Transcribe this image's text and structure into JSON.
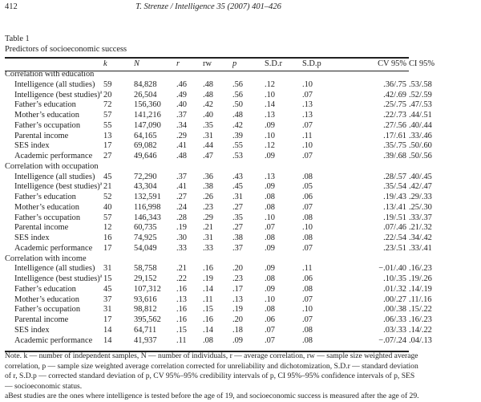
{
  "header": {
    "page_number": "412",
    "running_head": "T. Strenze / Intelligence 35 (2007) 401–426"
  },
  "table": {
    "label": "Table 1",
    "title": "Predictors of socioeconomic success",
    "columns": [
      "",
      "k",
      "N",
      "r",
      "rw",
      "p",
      "S.D.r",
      "S.D.p",
      "CV 95%",
      "CI 95%"
    ],
    "sections": [
      {
        "title": "Correlation with education",
        "rows": [
          [
            "Intelligence (all studies)",
            "59",
            "84,828",
            ".46",
            ".48",
            ".56",
            ".12",
            ".10",
            ".36/.75",
            ".53/.58"
          ],
          [
            "Intelligence (best studies)a",
            "20",
            "26,504",
            ".49",
            ".48",
            ".56",
            ".10",
            ".07",
            ".42/.69",
            ".52/.59"
          ],
          [
            "Father’s education",
            "72",
            "156,360",
            ".40",
            ".42",
            ".50",
            ".14",
            ".13",
            ".25/.75",
            ".47/.53"
          ],
          [
            "Mother’s education",
            "57",
            "141,216",
            ".37",
            ".40",
            ".48",
            ".13",
            ".13",
            ".22/.73",
            ".44/.51"
          ],
          [
            "Father’s occupation",
            "55",
            "147,090",
            ".34",
            ".35",
            ".42",
            ".09",
            ".07",
            ".27/.56",
            ".40/.44"
          ],
          [
            "Parental income",
            "13",
            "64,165",
            ".29",
            ".31",
            ".39",
            ".10",
            ".11",
            ".17/.61",
            ".33/.46"
          ],
          [
            "SES index",
            "17",
            "69,082",
            ".41",
            ".44",
            ".55",
            ".12",
            ".10",
            ".35/.75",
            ".50/.60"
          ],
          [
            "Academic performance",
            "27",
            "49,646",
            ".48",
            ".47",
            ".53",
            ".09",
            ".07",
            ".39/.68",
            ".50/.56"
          ]
        ]
      },
      {
        "title": "Correlation with occupation",
        "rows": [
          [
            "Intelligence (all studies)",
            "45",
            "72,290",
            ".37",
            ".36",
            ".43",
            ".13",
            ".08",
            ".28/.57",
            ".40/.45"
          ],
          [
            "Intelligence (best studies)a",
            "21",
            "43,304",
            ".41",
            ".38",
            ".45",
            ".09",
            ".05",
            ".35/.54",
            ".42/.47"
          ],
          [
            "Father’s education",
            "52",
            "132,591",
            ".27",
            ".26",
            ".31",
            ".08",
            ".06",
            ".19/.43",
            ".29/.33"
          ],
          [
            "Mother’s education",
            "40",
            "116,998",
            ".24",
            ".23",
            ".27",
            ".08",
            ".07",
            ".13/.41",
            ".25/.30"
          ],
          [
            "Father’s occupation",
            "57",
            "146,343",
            ".28",
            ".29",
            ".35",
            ".10",
            ".08",
            ".19/.51",
            ".33/.37"
          ],
          [
            "Parental income",
            "12",
            "60,735",
            ".19",
            ".21",
            ".27",
            ".07",
            ".10",
            ".07/.46",
            ".21/.32"
          ],
          [
            "SES index",
            "16",
            "74,925",
            ".30",
            ".31",
            ".38",
            ".08",
            ".08",
            ".22/.54",
            ".34/.42"
          ],
          [
            "Academic performance",
            "17",
            "54,049",
            ".33",
            ".33",
            ".37",
            ".09",
            ".07",
            ".23/.51",
            ".33/.41"
          ]
        ]
      },
      {
        "title": "Correlation with income",
        "rows": [
          [
            "Intelligence (all studies)",
            "31",
            "58,758",
            ".21",
            ".16",
            ".20",
            ".09",
            ".11",
            "−.01/.40",
            ".16/.23"
          ],
          [
            "Intelligence (best studies)a",
            "15",
            "29,152",
            ".22",
            ".19",
            ".23",
            ".08",
            ".06",
            ".10/.35",
            ".19/.26"
          ],
          [
            "Father’s education",
            "45",
            "107,312",
            ".16",
            ".14",
            ".17",
            ".09",
            ".08",
            ".01/.32",
            ".14/.19"
          ],
          [
            "Mother’s education",
            "37",
            "93,616",
            ".13",
            ".11",
            ".13",
            ".10",
            ".07",
            ".00/.27",
            ".11/.16"
          ],
          [
            "Father’s occupation",
            "31",
            "98,812",
            ".16",
            ".15",
            ".19",
            ".08",
            ".10",
            ".00/.38",
            ".15/.22"
          ],
          [
            "Parental income",
            "17",
            "395,562",
            ".16",
            ".16",
            ".20",
            ".06",
            ".07",
            ".06/.33",
            ".16/.23"
          ],
          [
            "SES index",
            "14",
            "64,711",
            ".15",
            ".14",
            ".18",
            ".07",
            ".08",
            ".03/.33",
            ".14/.22"
          ],
          [
            "Academic performance",
            "14",
            "41,937",
            ".11",
            ".08",
            ".09",
            ".07",
            ".08",
            "−.07/.24",
            ".04/.13"
          ]
        ]
      }
    ],
    "note": "Note. k — number of independent samples, N — number of individuals, r — average correlation, rw — sample size weighted average correlation, p — sample size weighted average correlation corrected for unreliability and dichotomization, S.D.r — standard deviation of r, S.D.p — corrected standard deviation of p, CV 95%–95% credibility intervals of p, CI 95%–95% confidence intervals of p, SES — socioeconomic status.",
    "footnote": "aBest studies are the ones where intelligence is tested before the age of 19, and socioeconomic success is measured after the age of 29."
  }
}
